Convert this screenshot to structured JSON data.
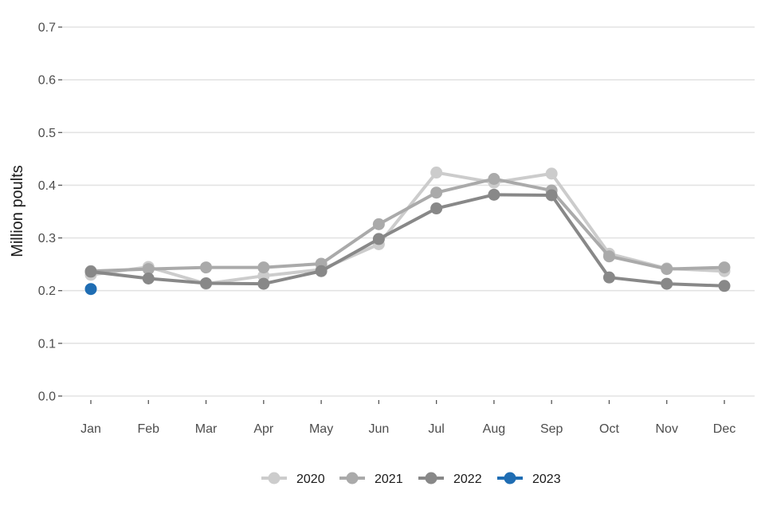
{
  "chart_data": {
    "type": "line",
    "title": "",
    "xlabel": "",
    "ylabel": "Million poults",
    "categories": [
      "Jan",
      "Feb",
      "Mar",
      "Apr",
      "May",
      "Jun",
      "Jul",
      "Aug",
      "Sep",
      "Oct",
      "Nov",
      "Dec"
    ],
    "ylim": [
      0,
      0.7
    ],
    "yticks": [
      "0.0",
      "0.1",
      "0.2",
      "0.3",
      "0.4",
      "0.5",
      "0.6",
      "0.7"
    ],
    "grid": "horizontal",
    "legend_position": "bottom",
    "series": [
      {
        "name": "2020",
        "color": "#cccccc",
        "values": [
          0.23,
          0.245,
          0.213,
          0.228,
          0.24,
          0.288,
          0.424,
          0.405,
          0.422,
          0.27,
          0.242,
          0.237
        ]
      },
      {
        "name": "2021",
        "color": "#aaaaaa",
        "values": [
          0.237,
          0.241,
          0.244,
          0.244,
          0.251,
          0.326,
          0.386,
          0.412,
          0.39,
          0.265,
          0.241,
          0.244
        ]
      },
      {
        "name": "2022",
        "color": "#888888",
        "values": [
          0.236,
          0.223,
          0.214,
          0.213,
          0.237,
          0.298,
          0.356,
          0.382,
          0.381,
          0.225,
          0.213,
          0.209
        ]
      },
      {
        "name": "2023",
        "color": "#1f6db3",
        "values": [
          0.203,
          null,
          null,
          null,
          null,
          null,
          null,
          null,
          null,
          null,
          null,
          null
        ]
      }
    ]
  }
}
